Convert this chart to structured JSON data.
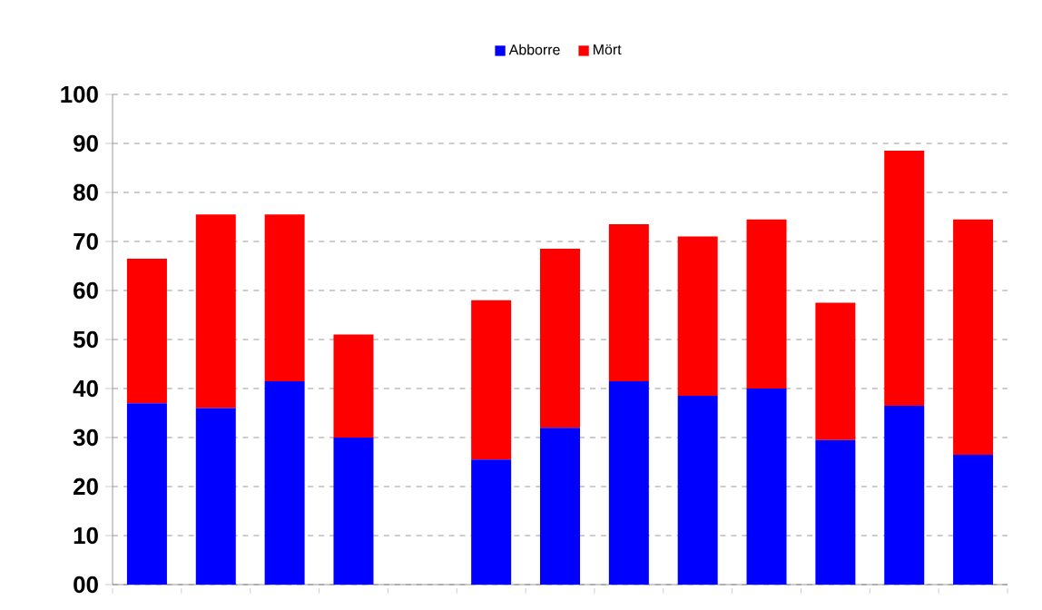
{
  "chart_data": {
    "type": "bar",
    "stacked": true,
    "categories": [
      null,
      null,
      null,
      null,
      null,
      null,
      null,
      null,
      null,
      null,
      null,
      null,
      null
    ],
    "series": [
      {
        "name": "Abborre",
        "color": "#0000ff",
        "values": [
          37,
          36,
          41.5,
          30,
          null,
          25.5,
          32,
          41.5,
          38.5,
          40,
          29.5,
          36.5,
          26.5
        ]
      },
      {
        "name": "Mört",
        "color": "#ff0000",
        "values": [
          29.5,
          39.5,
          34,
          21,
          null,
          32.5,
          36.5,
          32,
          32.5,
          34.5,
          28,
          52,
          48
        ]
      }
    ],
    "ylim": [
      0,
      100
    ],
    "yticks": [
      {
        "value": 0,
        "label": "00"
      },
      10,
      20,
      30,
      40,
      50,
      60,
      70,
      80,
      90,
      100
    ],
    "grid": "y",
    "legend": "top"
  }
}
